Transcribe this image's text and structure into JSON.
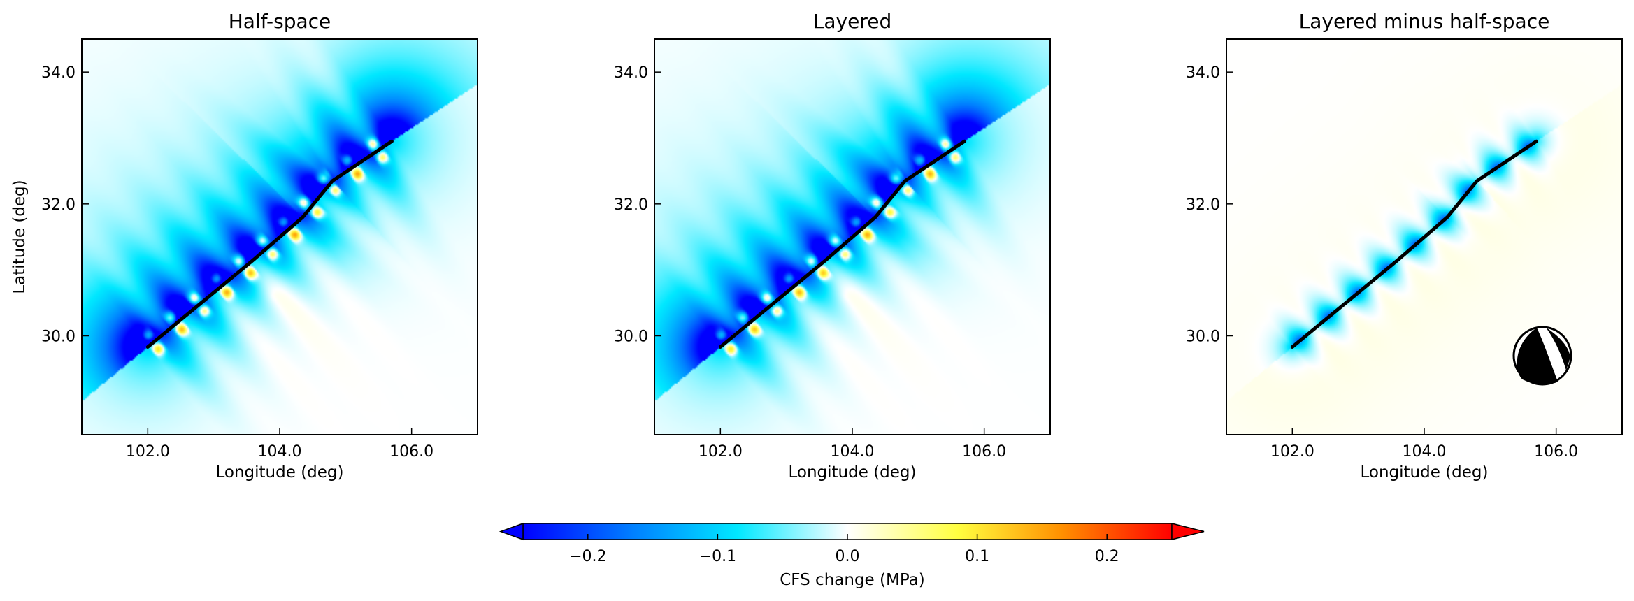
{
  "figure": {
    "colorbar": {
      "label": "CFS change (MPa)",
      "range": [
        -0.25,
        0.25
      ],
      "ticks": [
        -0.2,
        -0.1,
        0.0,
        0.1,
        0.2
      ],
      "tick_labels": [
        "−0.2",
        "−0.1",
        "0.0",
        "0.1",
        "0.2"
      ],
      "extend": "both",
      "colormap": "jet-like (blue → cyan → white → yellow → red)"
    }
  },
  "chart_data": [
    {
      "type": "heatmap",
      "title": "Half-space",
      "xlabel": "Longitude (deg)",
      "ylabel": "Latitude (deg)",
      "xlim": [
        101.0,
        107.0
      ],
      "ylim": [
        28.5,
        34.5
      ],
      "xticks": [
        "102.0",
        "104.0",
        "106.0"
      ],
      "yticks": [
        "30.0",
        "32.0",
        "34.0"
      ],
      "fault_trace": [
        [
          102.0,
          29.83
        ],
        [
          103.6,
          31.15
        ],
        [
          104.35,
          31.8
        ],
        [
          104.8,
          32.35
        ],
        [
          105.7,
          32.95
        ]
      ],
      "amplitude": 1.0,
      "focal_mechanism": false
    },
    {
      "type": "heatmap",
      "title": "Layered",
      "xlabel": "Longitude (deg)",
      "ylabel": "",
      "xlim": [
        101.0,
        107.0
      ],
      "ylim": [
        28.5,
        34.5
      ],
      "xticks": [
        "102.0",
        "104.0",
        "106.0"
      ],
      "yticks": [
        "30.0",
        "32.0",
        "34.0"
      ],
      "fault_trace": [
        [
          102.0,
          29.83
        ],
        [
          103.6,
          31.15
        ],
        [
          104.35,
          31.8
        ],
        [
          104.8,
          32.35
        ],
        [
          105.7,
          32.95
        ]
      ],
      "amplitude": 0.95,
      "focal_mechanism": false
    },
    {
      "type": "heatmap",
      "title": "Layered minus half-space",
      "xlabel": "Longitude (deg)",
      "ylabel": "",
      "xlim": [
        101.0,
        107.0
      ],
      "ylim": [
        28.5,
        34.5
      ],
      "xticks": [
        "102.0",
        "104.0",
        "106.0"
      ],
      "yticks": [
        "30.0",
        "32.0",
        "34.0"
      ],
      "fault_trace": [
        [
          102.0,
          29.83
        ],
        [
          103.6,
          31.15
        ],
        [
          104.35,
          31.8
        ],
        [
          104.8,
          32.35
        ],
        [
          105.7,
          32.95
        ]
      ],
      "amplitude": 0.25,
      "focal_mechanism": true
    }
  ]
}
